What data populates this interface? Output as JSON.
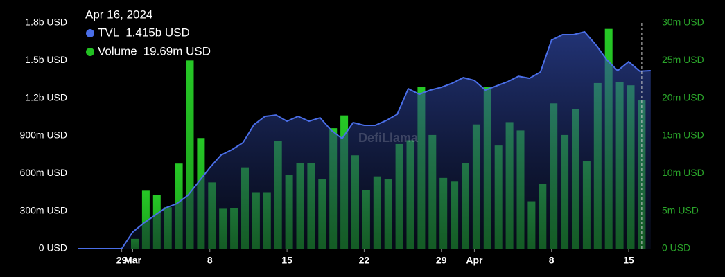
{
  "chart_data": {
    "type": "bar-line",
    "tooltip": {
      "title": "Apr 16, 2024"
    },
    "watermark": "DefiLlama",
    "categories": [
      null,
      null,
      null,
      null,
      "29",
      "Mar",
      null,
      null,
      null,
      null,
      null,
      null,
      "8",
      null,
      null,
      null,
      null,
      null,
      null,
      "15",
      null,
      null,
      null,
      null,
      null,
      null,
      "22",
      null,
      null,
      null,
      null,
      null,
      null,
      "29",
      null,
      null,
      "Apr",
      null,
      null,
      null,
      null,
      null,
      null,
      "8",
      null,
      null,
      null,
      null,
      null,
      null,
      "15",
      null,
      null
    ],
    "series": [
      {
        "name": "TVL",
        "type": "line",
        "color": "#4a6ee8",
        "axis": "y",
        "values": [
          0,
          0,
          0,
          0,
          0,
          132000000,
          204000000,
          265000000,
          326000000,
          359000000,
          425000000,
          535000000,
          646000000,
          745000000,
          789000000,
          845000000,
          988000000,
          1054000000,
          1065000000,
          1016000000,
          1054000000,
          1016000000,
          1043000000,
          944000000,
          878000000,
          1005000000,
          983000000,
          983000000,
          1021000000,
          1071000000,
          1275000000,
          1231000000,
          1264000000,
          1286000000,
          1319000000,
          1363000000,
          1341000000,
          1264000000,
          1297000000,
          1330000000,
          1374000000,
          1358000000,
          1408000000,
          1662000000,
          1706000000,
          1706000000,
          1728000000,
          1628000000,
          1507000000,
          1419000000,
          1490000000,
          1415000000,
          1419000000
        ],
        "value_labels": [
          null,
          null,
          null,
          null,
          null,
          null,
          null,
          null,
          null,
          null,
          null,
          null,
          null,
          null,
          null,
          null,
          null,
          null,
          null,
          null,
          null,
          null,
          null,
          null,
          null,
          null,
          null,
          null,
          null,
          null,
          null,
          null,
          null,
          null,
          null,
          null,
          null,
          null,
          null,
          null,
          null,
          null,
          null,
          null,
          null,
          null,
          null,
          null,
          null,
          null,
          null,
          "1.415b USD",
          null
        ]
      },
      {
        "name": "Volume",
        "type": "bar",
        "color": "#22c022",
        "axis": "y2",
        "values": [
          null,
          null,
          null,
          null,
          null,
          1300000,
          7700000,
          7100000,
          5500000,
          11300000,
          25000000,
          14700000,
          8800000,
          5300000,
          5400000,
          10800000,
          7500000,
          7500000,
          14300000,
          9800000,
          11400000,
          11400000,
          9200000,
          16000000,
          17700000,
          12400000,
          7800000,
          9600000,
          9200000,
          13900000,
          14400000,
          21500000,
          15100000,
          9400000,
          8900000,
          11400000,
          16500000,
          21500000,
          13700000,
          16800000,
          15700000,
          6300000,
          8600000,
          19300000,
          15100000,
          18500000,
          11600000,
          22000000,
          29200000,
          22100000,
          21700000,
          19690000,
          null
        ],
        "value_labels": [
          null,
          null,
          null,
          null,
          null,
          null,
          null,
          null,
          null,
          null,
          null,
          null,
          null,
          null,
          null,
          null,
          null,
          null,
          null,
          null,
          null,
          null,
          null,
          null,
          null,
          null,
          null,
          null,
          null,
          null,
          null,
          null,
          null,
          null,
          null,
          null,
          null,
          null,
          null,
          null,
          null,
          null,
          null,
          null,
          null,
          null,
          null,
          null,
          null,
          null,
          null,
          "19.69m USD",
          null
        ]
      }
    ],
    "hover_index": 51,
    "ylim": [
      0,
      1800000000
    ],
    "yticks": [
      {
        "value": 0,
        "label": "0 USD"
      },
      {
        "value": 300000000,
        "label": "300m USD"
      },
      {
        "value": 600000000,
        "label": "600m USD"
      },
      {
        "value": 900000000,
        "label": "900m USD"
      },
      {
        "value": 1200000000,
        "label": "1.2b USD"
      },
      {
        "value": 1500000000,
        "label": "1.5b USD"
      },
      {
        "value": 1800000000,
        "label": "1.8b USD"
      }
    ],
    "y2lim": [
      0,
      30000000
    ],
    "y2ticks": [
      {
        "value": 0,
        "label": "0 USD"
      },
      {
        "value": 5000000,
        "label": "5m USD"
      },
      {
        "value": 10000000,
        "label": "10m USD"
      },
      {
        "value": 15000000,
        "label": "15m USD"
      },
      {
        "value": 20000000,
        "label": "20m USD"
      },
      {
        "value": 25000000,
        "label": "25m USD"
      },
      {
        "value": 30000000,
        "label": "30m USD"
      }
    ],
    "y2color": "#2aa52a",
    "grid": false
  }
}
